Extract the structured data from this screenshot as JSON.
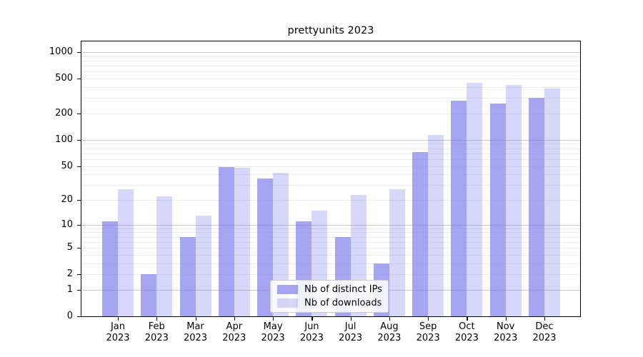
{
  "chart_data": {
    "type": "bar",
    "title": "prettyunits 2023",
    "categories": [
      "Jan",
      "Feb",
      "Mar",
      "Apr",
      "May",
      "Jun",
      "Jul",
      "Aug",
      "Sep",
      "Oct",
      "Nov",
      "Dec"
    ],
    "x_tick_year": "2023",
    "series": [
      {
        "name": "Nb of distinct IPs",
        "color": "rgba(130,130,235,0.72)",
        "values": [
          11,
          2,
          7,
          49,
          36,
          11,
          7,
          3,
          73,
          282,
          262,
          301
        ]
      },
      {
        "name": "Nb of downloads",
        "color": "rgba(130,130,235,0.32)",
        "values": [
          27,
          22,
          13,
          48,
          42,
          15,
          23,
          27,
          113,
          444,
          424,
          384
        ]
      }
    ],
    "y_scale": "log1p",
    "y_ticks": [
      0,
      1,
      2,
      5,
      10,
      20,
      50,
      100,
      200,
      500,
      1000
    ],
    "ylim": [
      0,
      1325
    ],
    "grid": {
      "show": true,
      "major_color": "#c9c9c9",
      "minor_color": "#ececec"
    },
    "legend_position": "lower center inside"
  },
  "colors": {
    "background": "#ffffff",
    "spine": "#000000",
    "text": "#000000"
  }
}
